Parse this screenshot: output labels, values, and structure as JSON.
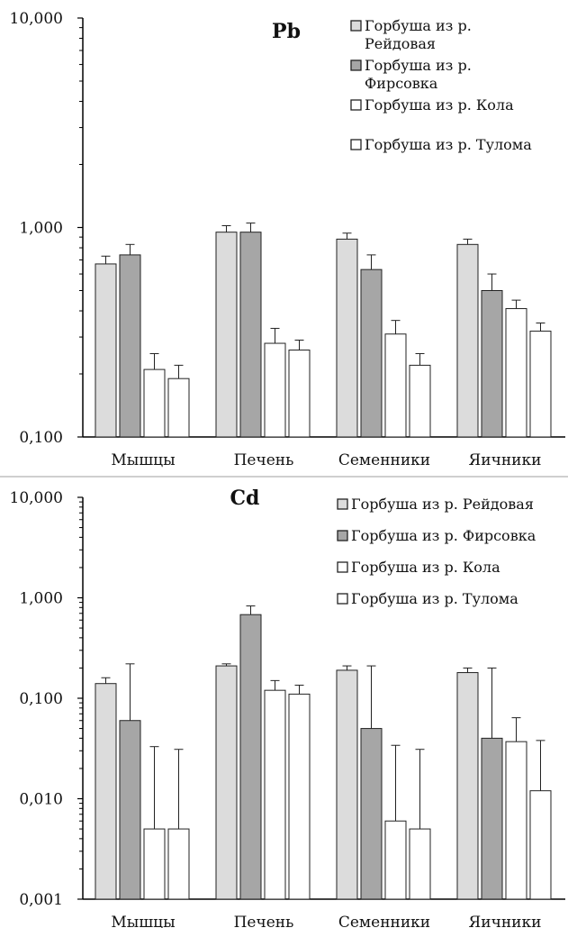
{
  "chart_data": [
    {
      "type": "bar",
      "title": "Pb",
      "yscale": "log",
      "ylim": [
        0.1,
        10
      ],
      "yticks": [
        "0,100",
        "1,000",
        "10,000"
      ],
      "categories": [
        "Мышцы",
        "Печень",
        "Семенники",
        "Яичники"
      ],
      "legend_position": "top-right",
      "series": [
        {
          "name": "Горбуша из р. Рейдовая",
          "color": "#dcdcdc",
          "values": [
            0.67,
            0.95,
            0.88,
            0.83
          ],
          "errors": [
            0.06,
            0.07,
            0.06,
            0.05
          ]
        },
        {
          "name": "Горбуша из р. Фирсовка",
          "color": "#a6a6a6",
          "values": [
            0.74,
            0.95,
            0.63,
            0.5
          ],
          "errors": [
            0.09,
            0.1,
            0.11,
            0.1
          ]
        },
        {
          "name": "Горбуша из р. Кола",
          "color": "#ffffff",
          "values": [
            0.21,
            0.28,
            0.31,
            0.41
          ],
          "errors": [
            0.04,
            0.05,
            0.05,
            0.04
          ]
        },
        {
          "name": "Горбуша из р. Тулома",
          "color": "#ffffff",
          "values": [
            0.19,
            0.26,
            0.22,
            0.32
          ],
          "errors": [
            0.03,
            0.03,
            0.03,
            0.03
          ]
        }
      ]
    },
    {
      "type": "bar",
      "title": "Cd",
      "yscale": "log",
      "ylim": [
        0.001,
        10
      ],
      "yticks": [
        "0,001",
        "0,010",
        "0,100",
        "1,000",
        "10,000"
      ],
      "categories": [
        "Мышцы",
        "Печень",
        "Семенники",
        "Яичники"
      ],
      "legend_position": "top-right",
      "series": [
        {
          "name": "Горбуша из р. Рейдовая",
          "color": "#dcdcdc",
          "values": [
            0.14,
            0.21,
            0.19,
            0.18
          ],
          "errors": [
            0.02,
            0.01,
            0.02,
            0.02
          ]
        },
        {
          "name": "Горбуша из р. Фирсовка",
          "color": "#a6a6a6",
          "values": [
            0.06,
            0.68,
            0.05,
            0.04
          ],
          "errors": [
            0.16,
            0.15,
            0.16,
            0.16
          ]
        },
        {
          "name": "Горбуша из р. Кола",
          "color": "#ffffff",
          "values": [
            0.005,
            0.12,
            0.006,
            0.037
          ],
          "errors": [
            0.028,
            0.03,
            0.028,
            0.027
          ]
        },
        {
          "name": "Горбуша из р. Тулома",
          "color": "#ffffff",
          "values": [
            0.005,
            0.11,
            0.005,
            0.012
          ],
          "errors": [
            0.026,
            0.025,
            0.026,
            0.026
          ]
        }
      ]
    }
  ]
}
